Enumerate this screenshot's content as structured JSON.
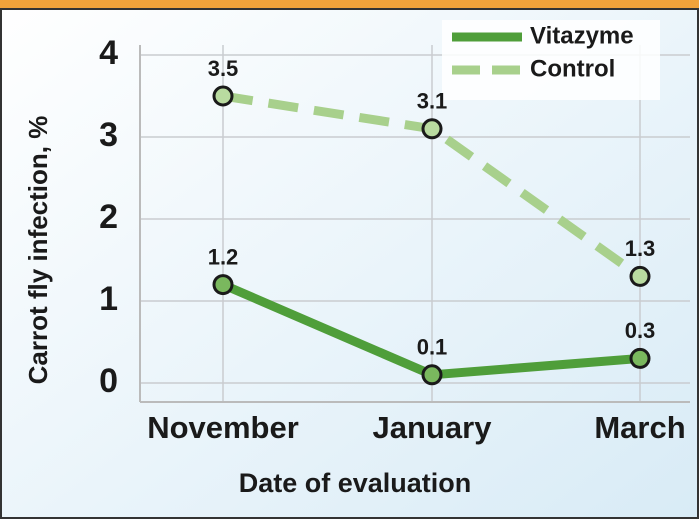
{
  "chart_data": {
    "type": "line",
    "y_label": "Carrot fly infection, %",
    "x_label": "Date of evaluation",
    "categories": [
      "November",
      "January",
      "March"
    ],
    "series": [
      {
        "name": "Vitazyme",
        "color": "#4f9e3a",
        "dash": false,
        "values": [
          1.2,
          0.1,
          0.3
        ]
      },
      {
        "name": "Control",
        "color": "#a8d08c",
        "dash": true,
        "values": [
          3.5,
          3.1,
          1.3
        ]
      }
    ],
    "ylim": [
      0,
      4
    ],
    "yticks": [
      0,
      1,
      2,
      3,
      4
    ],
    "grid": true,
    "legend": "upper right"
  }
}
